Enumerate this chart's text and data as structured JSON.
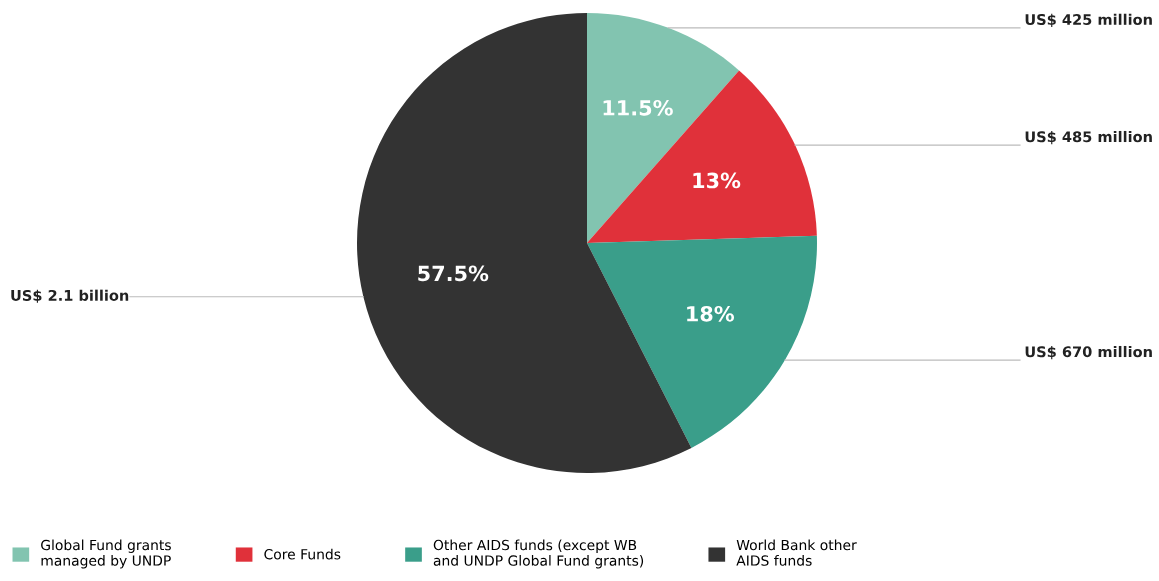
{
  "chart_data": {
    "type": "pie",
    "categories": [
      "Global Fund grants\nmanaged by UNDP",
      "Core Funds",
      "Other AIDS funds (except WB\nand UNDP Global Fund grants)",
      "World Bank other\nAIDS funds"
    ],
    "values": [
      11.5,
      13,
      18,
      57.5
    ],
    "value_labels": [
      "11.5%",
      "13%",
      "18%",
      "57.5%"
    ],
    "colors": [
      "#82c4b0",
      "#e0313a",
      "#3a9e8a",
      "#333333"
    ],
    "annotations": [
      "US$ 425 million",
      "US$ 485 million",
      "US$ 670 million",
      "US$ 2.1 billion"
    ],
    "legend": "bottom"
  }
}
